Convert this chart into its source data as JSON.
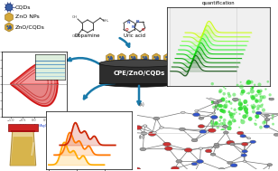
{
  "title": "CPE/ZnO/CQDs",
  "background_color": "#ffffff",
  "electrochemical_label": "Electrochemical\nquantification",
  "arrow_color": "#1a7aaa",
  "dopamine_label": "Dopamine",
  "uric_acid_label": "Uric acid",
  "legend_labels": [
    "CQDs",
    "ZnO NPs",
    "ZnO/CQDs"
  ],
  "cqd_color": "#3a5fa5",
  "zno_color": "#d4a83a",
  "zno_edge": "#a07820",
  "bond_color": "#888888",
  "green_fl_color": "#33dd33",
  "cup_body": "#d4b870",
  "cup_lid": "#cc2222",
  "cv_color": "#cc2222",
  "ec_colors": [
    "#004400",
    "#006600",
    "#008800",
    "#00aa00",
    "#00cc00",
    "#22ee22",
    "#44ff44",
    "#88ff44",
    "#aaff22",
    "#ccff00"
  ],
  "waterfall_colors": [
    "#ffaa00",
    "#ff7700",
    "#cc2200"
  ],
  "mol_red": "#cc3333",
  "mol_blue": "#3355cc",
  "mol_gray": "#999999",
  "mol_white": "#dddddd"
}
